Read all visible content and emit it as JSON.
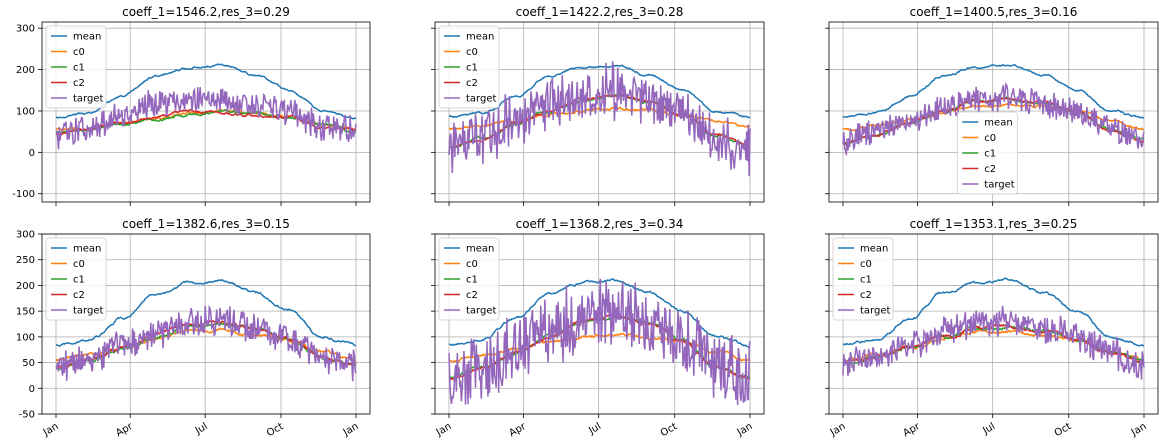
{
  "chart_data": [
    {
      "type": "line",
      "title": "coeff_1=1546.2,res_3=0.29",
      "ylim": [
        -120,
        315
      ],
      "yticks": [
        -100,
        0,
        100,
        200,
        300
      ],
      "xticks": [
        "Jan",
        "Apr",
        "Jul",
        "Oct",
        "Jan"
      ],
      "legend_position": "upper-left",
      "grid": true,
      "series": [
        {
          "name": "mean",
          "color": "#1f77b4",
          "values": [
            85,
            95,
            135,
            185,
            205,
            210,
            185,
            150,
            100,
            85
          ]
        },
        {
          "name": "c0",
          "color": "#ff7f0e",
          "values": [
            55,
            60,
            70,
            82,
            95,
            100,
            95,
            85,
            70,
            55
          ]
        },
        {
          "name": "c1",
          "color": "#2ca02c",
          "values": [
            50,
            55,
            68,
            80,
            92,
            100,
            95,
            82,
            65,
            50
          ]
        },
        {
          "name": "c2",
          "color": "#d62728",
          "values": [
            45,
            55,
            72,
            85,
            100,
            95,
            90,
            85,
            60,
            55
          ]
        },
        {
          "name": "target",
          "color": "#9467bd",
          "values": [
            40,
            60,
            90,
            120,
            130,
            125,
            115,
            100,
            60,
            50
          ],
          "noise": 40
        }
      ]
    },
    {
      "type": "line",
      "title": "coeff_1=1422.2,res_3=0.28",
      "ylim": [
        -120,
        315
      ],
      "xticks": [
        "Jan",
        "Apr",
        "Jul",
        "Oct",
        "Jan"
      ],
      "legend_position": "upper-left",
      "grid": true,
      "series": [
        {
          "name": "mean",
          "color": "#1f77b4",
          "values": [
            85,
            95,
            135,
            185,
            205,
            210,
            185,
            150,
            100,
            85
          ]
        },
        {
          "name": "c0",
          "color": "#ff7f0e",
          "values": [
            55,
            65,
            78,
            90,
            100,
            105,
            100,
            90,
            75,
            60
          ]
        },
        {
          "name": "c1",
          "color": "#2ca02c",
          "values": [
            15,
            35,
            70,
            100,
            125,
            135,
            120,
            90,
            40,
            15
          ]
        },
        {
          "name": "c2",
          "color": "#d62728",
          "values": [
            10,
            30,
            70,
            100,
            128,
            138,
            125,
            92,
            42,
            15
          ]
        },
        {
          "name": "target",
          "color": "#9467bd",
          "values": [
            10,
            40,
            80,
            110,
            140,
            150,
            130,
            95,
            40,
            10
          ],
          "noise": 75
        }
      ]
    },
    {
      "type": "line",
      "title": "coeff_1=1400.5,res_3=0.16",
      "ylim": [
        -120,
        315
      ],
      "xticks": [
        "Jan",
        "Apr",
        "Jul",
        "Oct",
        "Jan"
      ],
      "legend_position": "lower-center",
      "grid": true,
      "series": [
        {
          "name": "mean",
          "color": "#1f77b4",
          "values": [
            85,
            95,
            135,
            185,
            205,
            210,
            185,
            150,
            100,
            85
          ]
        },
        {
          "name": "c0",
          "color": "#ff7f0e",
          "values": [
            55,
            65,
            80,
            95,
            110,
            115,
            110,
            100,
            75,
            55
          ]
        },
        {
          "name": "c1",
          "color": "#2ca02c",
          "values": [
            25,
            40,
            72,
            100,
            125,
            128,
            118,
            95,
            55,
            30
          ]
        },
        {
          "name": "c2",
          "color": "#d62728",
          "values": [
            20,
            40,
            75,
            100,
            125,
            130,
            120,
            95,
            50,
            25
          ]
        },
        {
          "name": "target",
          "color": "#9467bd",
          "values": [
            30,
            50,
            80,
            110,
            125,
            135,
            115,
            100,
            60,
            30
          ],
          "noise": 40
        }
      ]
    },
    {
      "type": "line",
      "title": "coeff_1=1382.6,res_3=0.15",
      "ylim": [
        -50,
        300
      ],
      "yticks": [
        -50,
        0,
        50,
        100,
        150,
        200,
        250,
        300
      ],
      "xticks": [
        "Jan",
        "Apr",
        "Jul",
        "Oct",
        "Jan"
      ],
      "legend_position": "upper-left",
      "grid": true,
      "series": [
        {
          "name": "mean",
          "color": "#1f77b4",
          "values": [
            85,
            95,
            135,
            185,
            205,
            210,
            185,
            150,
            100,
            85
          ]
        },
        {
          "name": "c0",
          "color": "#ff7f0e",
          "values": [
            55,
            65,
            80,
            95,
            110,
            112,
            105,
            92,
            70,
            55
          ]
        },
        {
          "name": "c1",
          "color": "#2ca02c",
          "values": [
            40,
            55,
            78,
            100,
            122,
            125,
            115,
            95,
            60,
            45
          ]
        },
        {
          "name": "c2",
          "color": "#d62728",
          "values": [
            40,
            55,
            80,
            105,
            125,
            128,
            115,
            98,
            60,
            45
          ]
        },
        {
          "name": "target",
          "color": "#9467bd",
          "values": [
            40,
            60,
            85,
            105,
            125,
            130,
            115,
            95,
            60,
            45
          ],
          "noise": 35
        }
      ]
    },
    {
      "type": "line",
      "title": "coeff_1=1368.2,res_3=0.34",
      "ylim": [
        -50,
        300
      ],
      "xticks": [
        "Jan",
        "Apr",
        "Jul",
        "Oct",
        "Jan"
      ],
      "legend_position": "upper-left",
      "grid": true,
      "series": [
        {
          "name": "mean",
          "color": "#1f77b4",
          "values": [
            85,
            95,
            135,
            185,
            205,
            210,
            185,
            150,
            100,
            85
          ]
        },
        {
          "name": "c0",
          "color": "#ff7f0e",
          "values": [
            55,
            65,
            78,
            90,
            100,
            105,
            100,
            90,
            70,
            55
          ]
        },
        {
          "name": "c1",
          "color": "#2ca02c",
          "values": [
            20,
            40,
            70,
            100,
            130,
            140,
            125,
            95,
            40,
            20
          ]
        },
        {
          "name": "c2",
          "color": "#d62728",
          "values": [
            20,
            38,
            70,
            100,
            130,
            140,
            125,
            92,
            40,
            20
          ]
        },
        {
          "name": "target",
          "color": "#9467bd",
          "values": [
            20,
            45,
            80,
            110,
            140,
            150,
            130,
            95,
            40,
            20
          ],
          "noise": 80
        }
      ]
    },
    {
      "type": "line",
      "title": "coeff_1=1353.1,res_3=0.25",
      "ylim": [
        -50,
        300
      ],
      "xticks": [
        "Jan",
        "Apr",
        "Jul",
        "Oct",
        "Jan"
      ],
      "legend_position": "upper-left",
      "grid": true,
      "series": [
        {
          "name": "mean",
          "color": "#1f77b4",
          "values": [
            85,
            95,
            135,
            185,
            205,
            210,
            185,
            150,
            100,
            85
          ]
        },
        {
          "name": "c0",
          "color": "#ff7f0e",
          "values": [
            55,
            65,
            80,
            95,
            110,
            112,
            105,
            92,
            70,
            55
          ]
        },
        {
          "name": "c1",
          "color": "#2ca02c",
          "values": [
            50,
            60,
            78,
            100,
            115,
            118,
            110,
            95,
            70,
            55
          ]
        },
        {
          "name": "c2",
          "color": "#d62728",
          "values": [
            50,
            62,
            80,
            100,
            118,
            120,
            110,
            95,
            70,
            50
          ]
        },
        {
          "name": "target",
          "color": "#9467bd",
          "values": [
            50,
            65,
            85,
            110,
            125,
            130,
            115,
            100,
            70,
            40
          ],
          "noise": 35
        }
      ]
    }
  ]
}
